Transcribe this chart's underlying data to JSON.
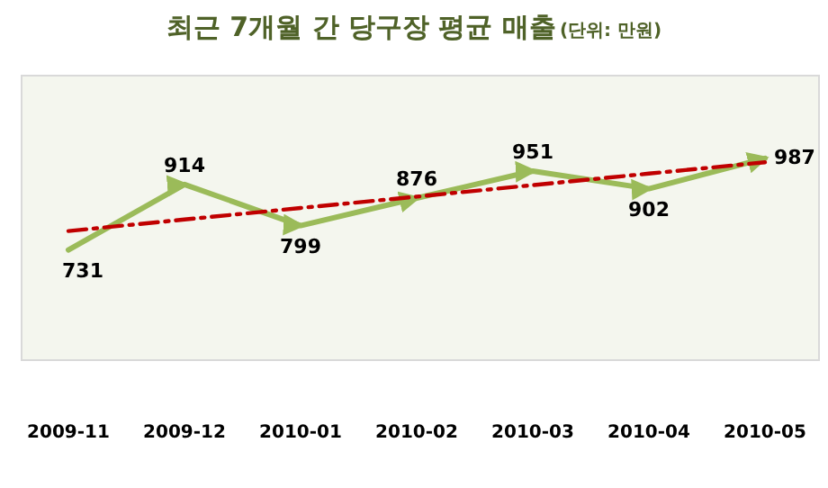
{
  "chart_data": {
    "type": "line",
    "title": "최근 7개월 간 당구장 평균 매출",
    "subtitle": "(단위: 만원)",
    "categories": [
      "2009-11",
      "2009-12",
      "2010-01",
      "2010-02",
      "2010-03",
      "2010-04",
      "2010-05"
    ],
    "series": [
      {
        "color": "#9bbb59",
        "values": [
          731,
          914,
          799,
          876,
          951,
          902,
          987
        ],
        "value_labels": [
          "731",
          "914",
          "799",
          "876",
          "951",
          "902",
          "987"
        ]
      },
      {
        "type": "line",
        "color": "#c00000",
        "line_style": "dashed",
        "values": [
          784,
          816,
          848,
          880,
          912,
          944,
          976
        ]
      }
    ],
    "xlabel": null
  }
}
